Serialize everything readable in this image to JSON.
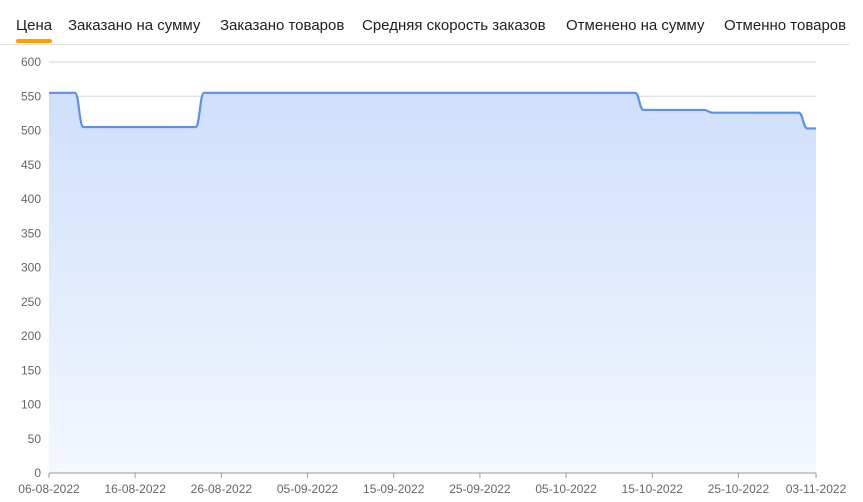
{
  "tabs": [
    {
      "label": "Цена",
      "active": true
    },
    {
      "label": "Заказано на сумму",
      "active": false
    },
    {
      "label": "Заказано товаров",
      "active": false
    },
    {
      "label": "Средняя скорость заказов",
      "active": false
    },
    {
      "label": "Отменено на сумму",
      "active": false
    },
    {
      "label": "Отменно товаров",
      "active": false
    }
  ],
  "colors": {
    "line": "#5b8ff0",
    "fill_top": "#cfdffb",
    "fill_bottom": "#f4f8ff",
    "grid": "#d5d5dd",
    "accent": "#ff9f00"
  },
  "chart_data": {
    "type": "area",
    "ylim": [
      0,
      600
    ],
    "yticks": [
      0,
      50,
      100,
      150,
      200,
      250,
      300,
      350,
      400,
      450,
      500,
      550,
      600
    ],
    "xlim": [
      "2022-08-06",
      "2022-11-03"
    ],
    "xticks": [
      "06-08-2022",
      "16-08-2022",
      "26-08-2022",
      "05-09-2022",
      "15-09-2022",
      "25-09-2022",
      "05-10-2022",
      "15-10-2022",
      "25-10-2022",
      "03-11-2022"
    ],
    "grid": true,
    "series": [
      {
        "points": [
          [
            "2022-08-06",
            555
          ],
          [
            "2022-08-09",
            555
          ],
          [
            "2022-08-10",
            505
          ],
          [
            "2022-08-23",
            505
          ],
          [
            "2022-08-24",
            555
          ],
          [
            "2022-10-13",
            555
          ],
          [
            "2022-10-14",
            530
          ],
          [
            "2022-10-21",
            530
          ],
          [
            "2022-10-22",
            526
          ],
          [
            "2022-11-01",
            526
          ],
          [
            "2022-11-02",
            503
          ],
          [
            "2022-11-03",
            503
          ]
        ]
      }
    ]
  }
}
